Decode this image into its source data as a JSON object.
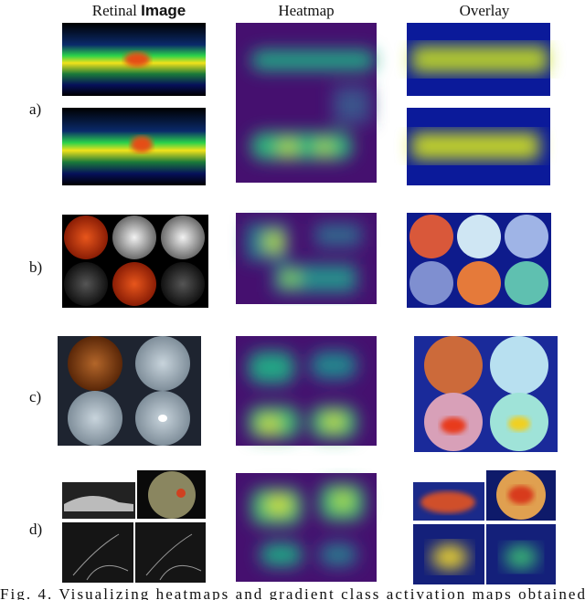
{
  "headers": {
    "col1": [
      "Retinal",
      "Image"
    ],
    "col2": "Heatmap",
    "col3": "Overlay"
  },
  "rows": [
    "a)",
    "b)",
    "c)",
    "d)"
  ],
  "caption": "Fig. 4.   Visualizing heatmaps and gradient class activation maps obtained"
}
